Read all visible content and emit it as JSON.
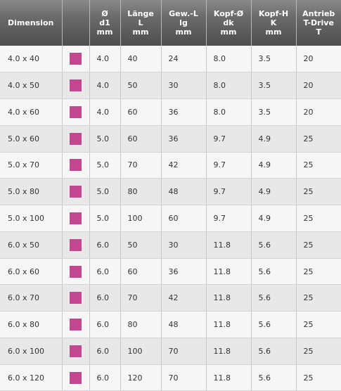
{
  "columns": [
    {
      "lines": [
        "Dimension"
      ]
    },
    {
      "lines": [
        ""
      ]
    },
    {
      "lines": [
        "Ø",
        "d1",
        "mm"
      ]
    },
    {
      "lines": [
        "Länge",
        "L",
        "mm"
      ]
    },
    {
      "lines": [
        "Gew.-L",
        "lg",
        "mm"
      ]
    },
    {
      "lines": [
        "Kopf-Ø",
        "dk",
        "mm"
      ]
    },
    {
      "lines": [
        "Kopf-H",
        "K",
        "mm"
      ]
    },
    {
      "lines": [
        "Antrieb",
        "T-Drive",
        "T"
      ]
    }
  ],
  "swatch_color": "#c2478e",
  "rows": [
    {
      "dimension": "4.0 x 40",
      "d1": "4.0",
      "length": "40",
      "thread": "24",
      "head_d": "8.0",
      "head_h": "3.5",
      "drive": "20"
    },
    {
      "dimension": "4.0 x 50",
      "d1": "4.0",
      "length": "50",
      "thread": "30",
      "head_d": "8.0",
      "head_h": "3.5",
      "drive": "20"
    },
    {
      "dimension": "4.0 x 60",
      "d1": "4.0",
      "length": "60",
      "thread": "36",
      "head_d": "8.0",
      "head_h": "3.5",
      "drive": "20"
    },
    {
      "dimension": "5.0 x 60",
      "d1": "5.0",
      "length": "60",
      "thread": "36",
      "head_d": "9.7",
      "head_h": "4.9",
      "drive": "25"
    },
    {
      "dimension": "5.0 x 70",
      "d1": "5.0",
      "length": "70",
      "thread": "42",
      "head_d": "9.7",
      "head_h": "4.9",
      "drive": "25"
    },
    {
      "dimension": "5.0 x 80",
      "d1": "5.0",
      "length": "80",
      "thread": "48",
      "head_d": "9.7",
      "head_h": "4.9",
      "drive": "25"
    },
    {
      "dimension": "5.0 x 100",
      "d1": "5.0",
      "length": "100",
      "thread": "60",
      "head_d": "9.7",
      "head_h": "4.9",
      "drive": "25"
    },
    {
      "dimension": "6.0 x 50",
      "d1": "6.0",
      "length": "50",
      "thread": "30",
      "head_d": "11.8",
      "head_h": "5.6",
      "drive": "25"
    },
    {
      "dimension": "6.0 x 60",
      "d1": "6.0",
      "length": "60",
      "thread": "36",
      "head_d": "11.8",
      "head_h": "5.6",
      "drive": "25"
    },
    {
      "dimension": "6.0 x 70",
      "d1": "6.0",
      "length": "70",
      "thread": "42",
      "head_d": "11.8",
      "head_h": "5.6",
      "drive": "25"
    },
    {
      "dimension": "6.0 x 80",
      "d1": "6.0",
      "length": "80",
      "thread": "48",
      "head_d": "11.8",
      "head_h": "5.6",
      "drive": "25"
    },
    {
      "dimension": "6.0 x 100",
      "d1": "6.0",
      "length": "100",
      "thread": "70",
      "head_d": "11.8",
      "head_h": "5.6",
      "drive": "25"
    },
    {
      "dimension": "6.0 x 120",
      "d1": "6.0",
      "length": "120",
      "thread": "70",
      "head_d": "11.8",
      "head_h": "5.6",
      "drive": "25"
    }
  ]
}
